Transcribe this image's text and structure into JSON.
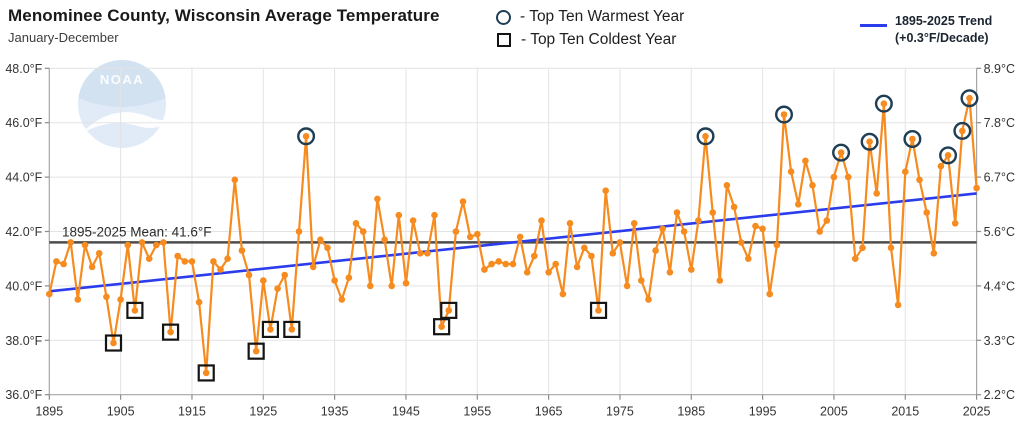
{
  "header": {
    "title": "Menominee County, Wisconsin Average Temperature",
    "subtitle": "January-December"
  },
  "legend": {
    "warmest_label": "- Top Ten Warmest Year",
    "coldest_label": "- Top Ten Coldest Year",
    "trend_line1": "1895-2025 Trend",
    "trend_line2": "(+0.3°F/Decade)"
  },
  "mean_label": "1895-2025 Mean: 41.6°F",
  "watermark_text": "NOAA",
  "colors": {
    "series": "#f68b1f",
    "trend": "#2a3cec",
    "mean_line": "#4d4d4d",
    "warmest_marker": "#1f3e53",
    "coldest_marker": "#141414",
    "grid": "#e3e3e3",
    "frame": "#a6a6a6",
    "tick": "#8c8c8c",
    "axis_text": "#333333",
    "watermark_circle": "#e0ebf7",
    "watermark_top": "#d3e2f1"
  },
  "chart_data": {
    "type": "line",
    "title": "Menominee County, Wisconsin Average Temperature",
    "subtitle": "January-December",
    "x_start": 1895,
    "x_end": 2025,
    "ylim_f": [
      36,
      48
    ],
    "y_left_ticks_f": [
      48,
      46,
      44,
      42,
      40,
      38,
      36
    ],
    "y_left_tick_labels": [
      "48.0°F",
      "46.0°F",
      "44.0°F",
      "42.0°F",
      "40.0°F",
      "38.0°F",
      "36.0°F"
    ],
    "y_right_tick_labels": [
      "8.9°C",
      "7.8°C",
      "6.7°C",
      "5.6°C",
      "4.4°C",
      "3.3°C",
      "2.2°C"
    ],
    "x_tick_years": [
      1895,
      1905,
      1915,
      1925,
      1935,
      1945,
      1955,
      1965,
      1975,
      1985,
      1995,
      2005,
      2015,
      2025
    ],
    "grid": true,
    "mean_f": 41.6,
    "trend": {
      "start_f": 39.8,
      "end_f": 43.4,
      "rate_label": "+0.3°F/Decade"
    },
    "values_f": [
      39.7,
      40.9,
      40.8,
      41.6,
      39.5,
      41.5,
      40.7,
      41.2,
      39.6,
      37.9,
      39.5,
      41.5,
      39.1,
      41.6,
      41.0,
      41.5,
      41.6,
      38.3,
      41.1,
      40.9,
      40.9,
      39.4,
      36.8,
      40.9,
      40.6,
      41.0,
      43.9,
      41.3,
      40.4,
      37.6,
      40.2,
      38.4,
      39.9,
      40.4,
      38.4,
      42.0,
      45.5,
      40.7,
      41.7,
      41.4,
      40.2,
      39.5,
      40.3,
      42.3,
      42.0,
      40.0,
      43.2,
      41.7,
      40.0,
      42.6,
      40.1,
      42.4,
      41.2,
      41.2,
      42.6,
      38.5,
      39.1,
      42.0,
      43.1,
      41.8,
      41.9,
      40.6,
      40.8,
      40.9,
      40.8,
      40.8,
      41.8,
      40.5,
      41.1,
      42.4,
      40.5,
      40.8,
      39.7,
      42.3,
      40.7,
      41.4,
      41.1,
      39.1,
      43.5,
      41.2,
      41.6,
      40.0,
      42.3,
      40.2,
      39.5,
      41.3,
      42.1,
      40.5,
      42.7,
      42.0,
      40.6,
      42.4,
      45.5,
      42.7,
      40.2,
      43.7,
      42.9,
      41.6,
      41.0,
      42.2,
      42.1,
      39.7,
      41.5,
      46.3,
      44.2,
      43.0,
      44.6,
      43.7,
      42.0,
      42.4,
      44.0,
      44.9,
      44.0,
      41.0,
      41.4,
      45.3,
      43.4,
      46.7,
      41.4,
      39.3,
      44.2,
      45.4,
      43.9,
      42.7,
      41.2,
      44.4,
      44.8,
      42.3,
      45.7,
      46.9,
      43.6
    ],
    "top_ten_warmest_years": [
      1931,
      1987,
      1998,
      2006,
      2010,
      2012,
      2016,
      2021,
      2023,
      2024
    ],
    "top_ten_coldest_years": [
      1904,
      1907,
      1912,
      1917,
      1924,
      1926,
      1929,
      1950,
      1951,
      1972
    ],
    "legend_position": "top"
  }
}
